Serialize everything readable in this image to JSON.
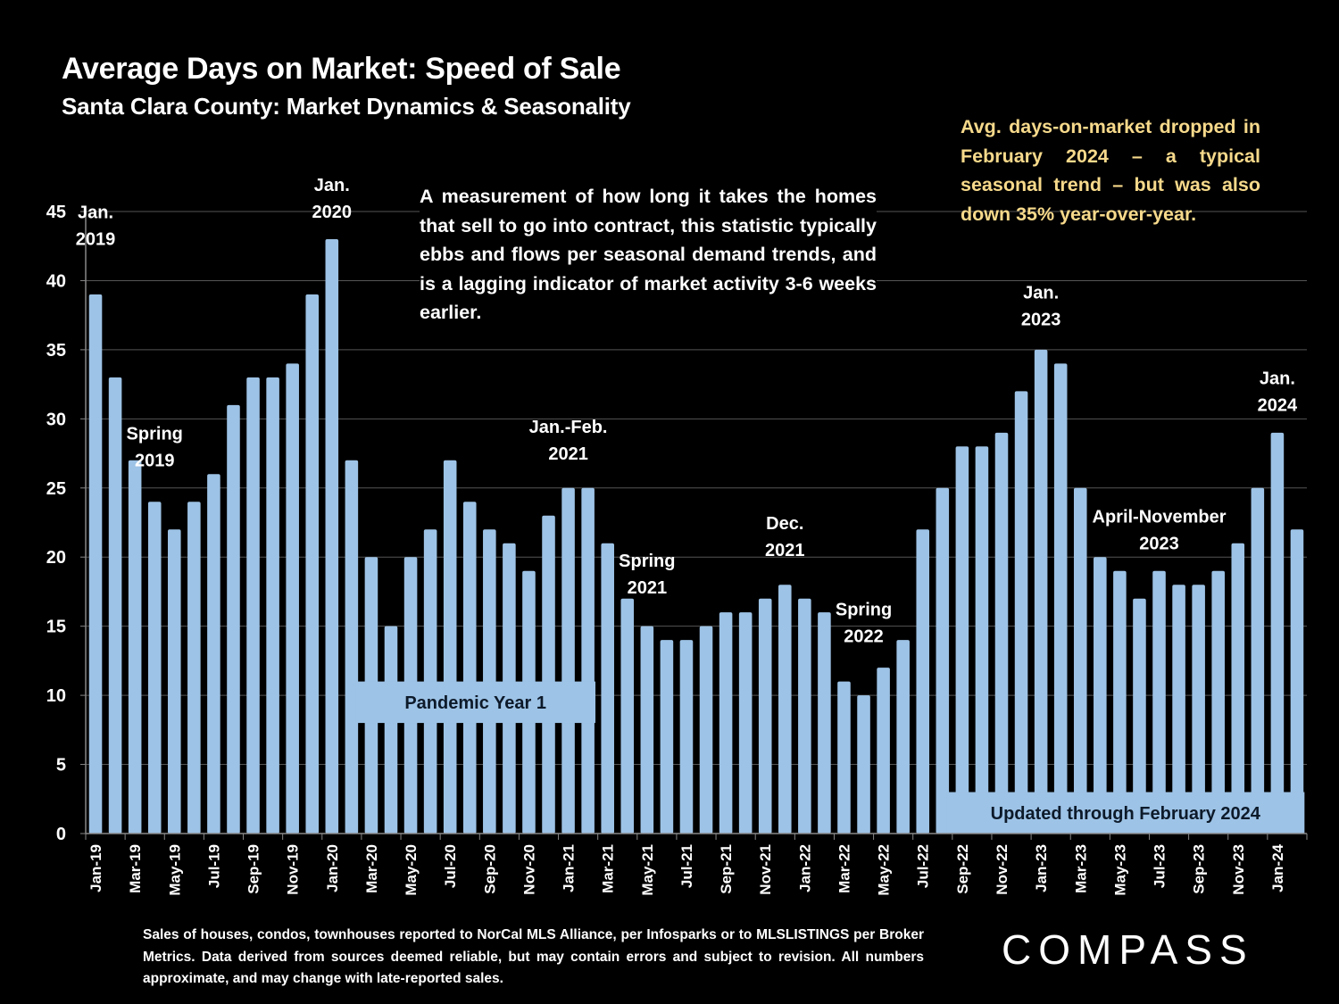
{
  "header": {
    "title": "Average Days on Market: Speed of Sale",
    "subtitle": "Santa Clara County: Market Dynamics & Seasonality"
  },
  "callout": "Avg. days-on-market dropped in February 2024 – a typical seasonal trend – but was also down 35% year-over-year.",
  "description": "A measurement of how long it takes the homes that sell to go into contract, this statistic typically ebbs and flows per seasonal demand trends, and is a lagging indicator of market activity 3-6 weeks earlier.",
  "footnote": "Sales of houses, condos, townhouses reported to NorCal MLS Alliance, per Infosparks or to MLSLISTINGS per Broker Metrics. Data derived from sources deemed reliable, but may contain errors and subject to revision. All numbers approximate, and may change with late-reported sales.",
  "logo": "COMPASS",
  "colors": {
    "bar": "#9dc3e6",
    "callout": "#f6d98b",
    "background": "#000000",
    "grid": "#555555"
  },
  "chart_data": {
    "type": "bar",
    "title": "Average Days on Market: Speed of Sale",
    "subtitle": "Santa Clara County: Market Dynamics & Seasonality",
    "xlabel": "",
    "ylabel": "",
    "ylim": [
      0,
      45
    ],
    "yticks": [
      0,
      5,
      10,
      15,
      20,
      25,
      30,
      35,
      40,
      45
    ],
    "grid": true,
    "legend": "none",
    "categories": [
      "Jan-19",
      "Feb-19",
      "Mar-19",
      "Apr-19",
      "May-19",
      "Jun-19",
      "Jul-19",
      "Aug-19",
      "Sep-19",
      "Oct-19",
      "Nov-19",
      "Dec-19",
      "Jan-20",
      "Feb-20",
      "Mar-20",
      "Apr-20",
      "May-20",
      "Jun-20",
      "Jul-20",
      "Aug-20",
      "Sep-20",
      "Oct-20",
      "Nov-20",
      "Dec-20",
      "Jan-21",
      "Feb-21",
      "Mar-21",
      "Apr-21",
      "May-21",
      "Jun-21",
      "Jul-21",
      "Aug-21",
      "Sep-21",
      "Oct-21",
      "Nov-21",
      "Dec-21",
      "Jan-22",
      "Feb-22",
      "Mar-22",
      "Apr-22",
      "May-22",
      "Jun-22",
      "Jul-22",
      "Aug-22",
      "Sep-22",
      "Oct-22",
      "Nov-22",
      "Dec-22",
      "Jan-23",
      "Feb-23",
      "Mar-23",
      "Apr-23",
      "May-23",
      "Jun-23",
      "Jul-23",
      "Aug-23",
      "Sep-23",
      "Oct-23",
      "Nov-23",
      "Dec-23",
      "Jan-24",
      "Feb-24"
    ],
    "tick_labels_shown": [
      "Jan-19",
      "Mar-19",
      "May-19",
      "Jul-19",
      "Sep-19",
      "Nov-19",
      "Jan-20",
      "Mar-20",
      "May-20",
      "Jul-20",
      "Sep-20",
      "Nov-20",
      "Jan-21",
      "Mar-21",
      "May-21",
      "Jul-21",
      "Sep-21",
      "Nov-21",
      "Jan-22",
      "Mar-22",
      "May-22",
      "Jul-22",
      "Sep-22",
      "Nov-22",
      "Jan-23",
      "Mar-23",
      "May-23",
      "Jul-23",
      "Sep-23",
      "Nov-23",
      "Jan-24"
    ],
    "series": [
      {
        "name": "Average Days on Market",
        "values": [
          39,
          33,
          27,
          24,
          22,
          24,
          26,
          31,
          33,
          33,
          34,
          39,
          43,
          27,
          20,
          15,
          20,
          22,
          27,
          24,
          22,
          21,
          19,
          23,
          25,
          25,
          21,
          17,
          15,
          14,
          14,
          15,
          16,
          16,
          17,
          18,
          17,
          16,
          11,
          10,
          12,
          14,
          22,
          25,
          28,
          28,
          29,
          32,
          35,
          34,
          25,
          20,
          19,
          17,
          19,
          18,
          18,
          19,
          21,
          25,
          29,
          22
        ]
      }
    ],
    "annotations": [
      {
        "lines": [
          "Jan.",
          "2019"
        ],
        "category": "Jan-19",
        "value": 44.5
      },
      {
        "lines": [
          "Spring",
          "2019"
        ],
        "category": "Apr-19",
        "value": 28.5
      },
      {
        "lines": [
          "Jan.",
          "2020"
        ],
        "category": "Jan-20",
        "value": 46.5
      },
      {
        "lines": [
          "Jan.-Feb.",
          "2021"
        ],
        "category": "Jan-21",
        "value": 29
      },
      {
        "lines": [
          "Spring",
          "2021"
        ],
        "category": "May-21",
        "value": 19.3
      },
      {
        "lines": [
          "Dec.",
          "2021"
        ],
        "category": "Dec-21",
        "value": 22
      },
      {
        "lines": [
          "Spring",
          "2022"
        ],
        "category": "Apr-22",
        "value": 15.8
      },
      {
        "lines": [
          "Jan.",
          "2023"
        ],
        "category": "Jan-23",
        "value": 38.7
      },
      {
        "lines": [
          "April-November",
          "2023"
        ],
        "category": "Jul-23",
        "value": 22.5
      },
      {
        "lines": [
          "Jan.",
          "2024"
        ],
        "category": "Jan-24",
        "value": 32.5
      }
    ],
    "bands": [
      {
        "label": "Pandemic Year 1",
        "from": "Mar-20",
        "to": "Feb-21",
        "value_range": [
          8,
          11
        ]
      },
      {
        "label": "Updated through February 2024",
        "from": "Sep-22",
        "to": "Feb-24",
        "value_range": [
          0,
          3
        ]
      }
    ]
  }
}
